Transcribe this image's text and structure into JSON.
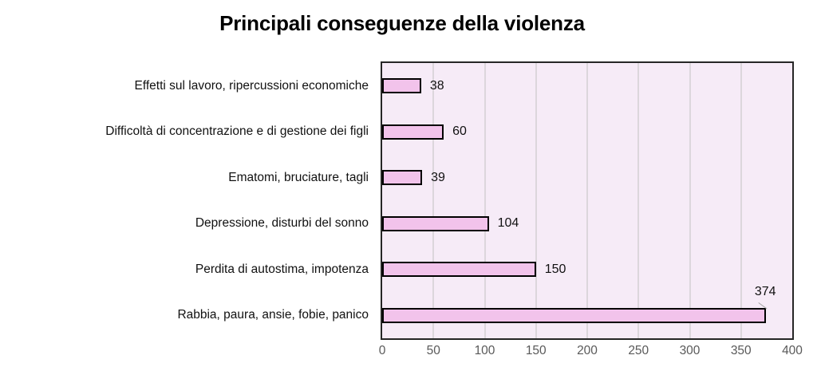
{
  "chart_data": {
    "type": "bar",
    "orientation": "horizontal",
    "title": "Principali conseguenze della violenza",
    "categories": [
      "Effetti sul lavoro, ripercussioni economiche",
      "Difficoltà di concentrazione e di gestione dei figli",
      "Ematomi, bruciature, tagli",
      "Depressione, disturbi del sonno",
      "Perdita di autostima, impotenza",
      "Rabbia, paura, ansie, fobie, panico"
    ],
    "values": [
      38,
      60,
      39,
      104,
      150,
      374
    ],
    "data_labels": [
      38,
      60,
      39,
      104,
      150,
      374
    ],
    "xlim": [
      0,
      400
    ],
    "x_ticks": [
      0,
      50,
      100,
      150,
      200,
      250,
      300,
      350,
      400
    ],
    "grid": "vertical-major",
    "legend": "none",
    "colors": {
      "bar_fill": "#f2c3eb",
      "bar_border": "#000000",
      "plot_bg": "#f6ebf7",
      "gridline": "#dcd6dc",
      "plot_border": "#262626",
      "tick_label": "#595959",
      "text": "#111111",
      "leader_line": "#a6a6a6"
    }
  }
}
